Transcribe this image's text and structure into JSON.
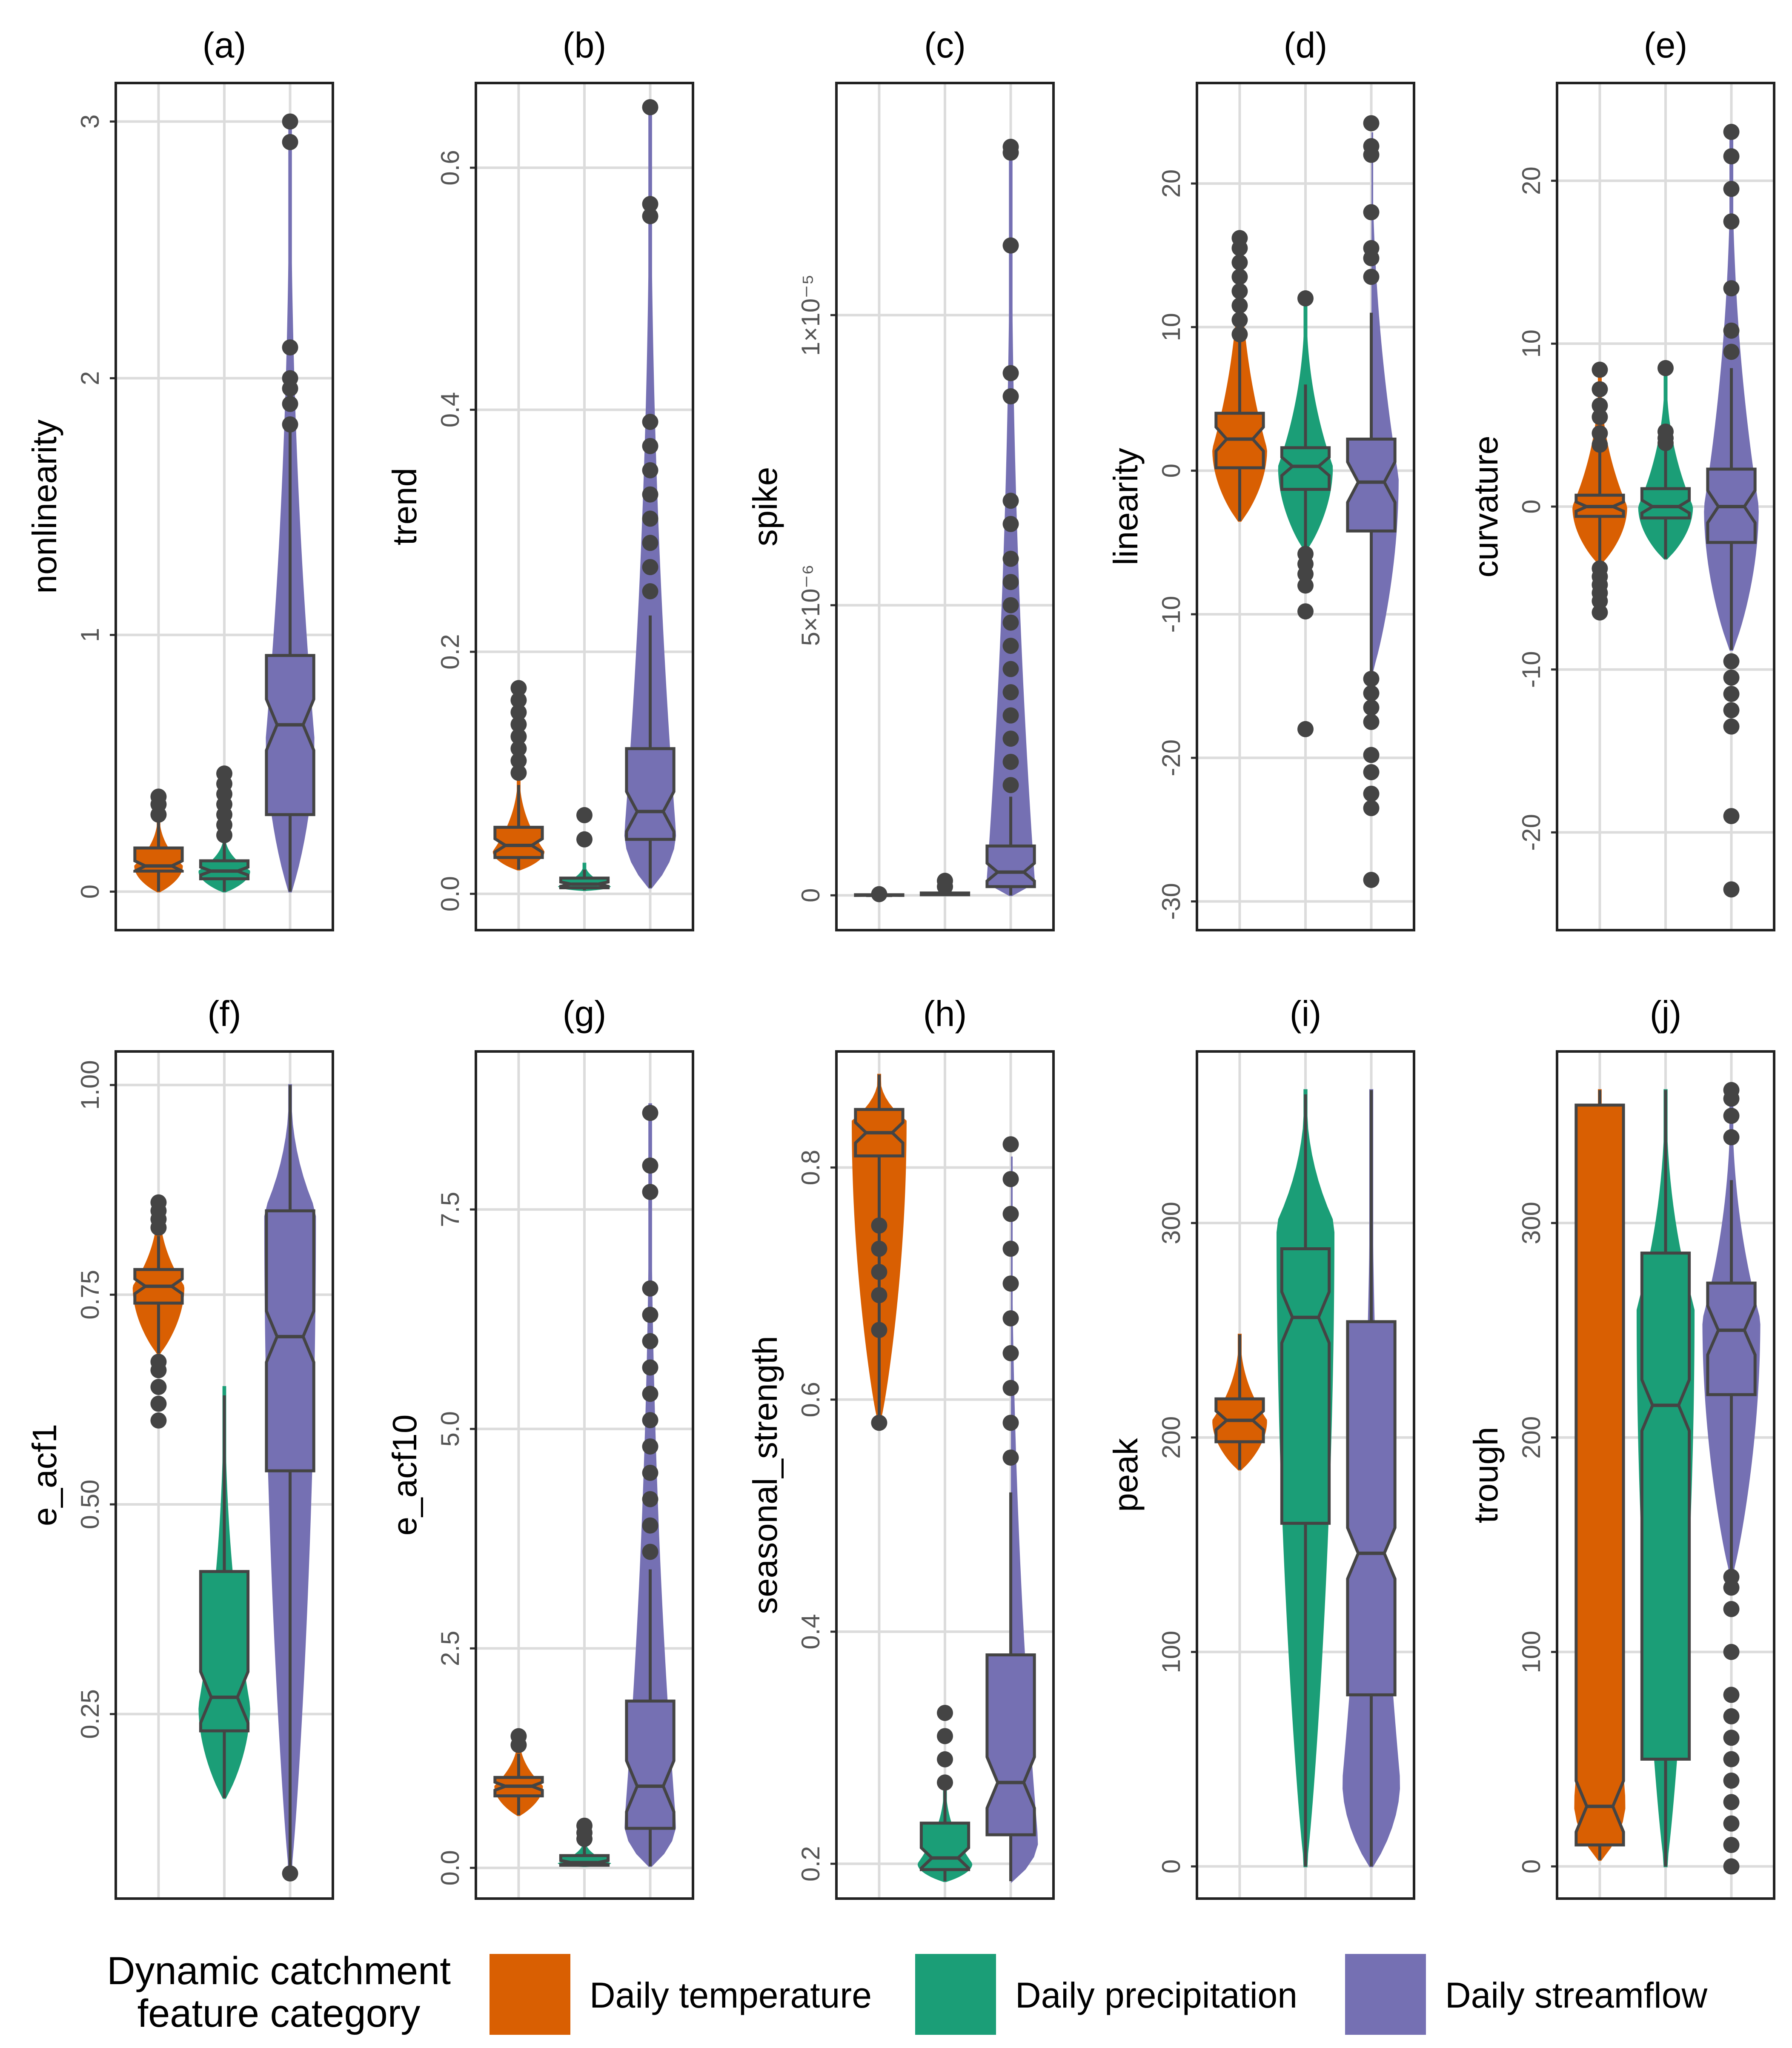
{
  "chart_data": {
    "type": "violin",
    "legend": {
      "title_line1": "Dynamic catchment",
      "title_line2": "feature category",
      "placement": "bottom",
      "entries": [
        {
          "label": "Daily temperature",
          "color": "#d95f02"
        },
        {
          "label": "Daily precipitation",
          "color": "#1b9e77"
        },
        {
          "label": "Daily streamflow",
          "color": "#7570b3"
        }
      ]
    },
    "categories": [
      "Daily temperature",
      "Daily precipitation",
      "Daily streamflow"
    ],
    "panels": [
      {
        "id": "a",
        "title": "(a)",
        "ylabel": "nonlinearity",
        "ylim": [
          -0.15,
          3.15
        ],
        "ticks": [
          {
            "v": 0,
            "t": "0"
          },
          {
            "v": 1,
            "t": "1"
          },
          {
            "v": 2,
            "t": "2"
          },
          {
            "v": 3,
            "t": "3"
          }
        ],
        "series": [
          {
            "min": 0.0,
            "q1": 0.08,
            "median": 0.1,
            "q3": 0.17,
            "max": 0.28,
            "violin_width": 0.75,
            "peak": 0.1,
            "top": 0.3,
            "outliers": [
              0.3,
              0.34,
              0.37
            ]
          },
          {
            "min": 0.0,
            "q1": 0.05,
            "median": 0.08,
            "q3": 0.12,
            "max": 0.2,
            "violin_width": 0.8,
            "peak": 0.08,
            "top": 0.22,
            "outliers": [
              0.22,
              0.26,
              0.3,
              0.34,
              0.38,
              0.42,
              0.46
            ]
          },
          {
            "min": 0.0,
            "q1": 0.3,
            "median": 0.65,
            "q3": 0.92,
            "max": 1.85,
            "violin_width": 0.75,
            "peak": 0.6,
            "top": 3.0,
            "outliers": [
              1.82,
              1.9,
              1.96,
              2.0,
              2.12,
              2.92,
              3.0
            ]
          }
        ]
      },
      {
        "id": "b",
        "title": "(b)",
        "ylabel": "trend",
        "ylim": [
          -0.03,
          0.67
        ],
        "ticks": [
          {
            "v": 0.0,
            "t": "0.0"
          },
          {
            "v": 0.2,
            "t": "0.2"
          },
          {
            "v": 0.4,
            "t": "0.4"
          },
          {
            "v": 0.6,
            "t": "0.6"
          }
        ],
        "series": [
          {
            "min": 0.02,
            "q1": 0.03,
            "median": 0.04,
            "q3": 0.055,
            "max": 0.09,
            "violin_width": 0.8,
            "peak": 0.035,
            "top": 0.1,
            "outliers": [
              0.1,
              0.11,
              0.12,
              0.13,
              0.14,
              0.15,
              0.16,
              0.17
            ]
          },
          {
            "min": 0.003,
            "q1": 0.005,
            "median": 0.008,
            "q3": 0.013,
            "max": 0.02,
            "violin_width": 0.8,
            "peak": 0.006,
            "top": 0.025,
            "outliers": [
              0.045,
              0.065
            ]
          },
          {
            "min": 0.005,
            "q1": 0.045,
            "median": 0.068,
            "q3": 0.12,
            "max": 0.23,
            "violin_width": 0.8,
            "peak": 0.05,
            "top": 0.65,
            "outliers": [
              0.25,
              0.27,
              0.29,
              0.31,
              0.33,
              0.35,
              0.37,
              0.39,
              0.56,
              0.57,
              0.65
            ]
          }
        ]
      },
      {
        "id": "c",
        "title": "(c)",
        "ylabel": "spike",
        "ylim": [
          -0.06,
          1.4
        ],
        "ticks": [
          {
            "v": 0,
            "t": "0"
          },
          {
            "v": 0.5,
            "t": "5×10⁻⁶"
          },
          {
            "v": 1.0,
            "t": "1×10⁻⁵"
          }
        ],
        "series": [
          {
            "min": 0.0,
            "q1": 0.0,
            "median": 0.0,
            "q3": 0.001,
            "max": 0.002,
            "violin_width": 0.65,
            "peak": 0.0,
            "top": 0.003,
            "outliers": [
              0.002
            ]
          },
          {
            "min": 0.0,
            "q1": 0.001,
            "median": 0.002,
            "q3": 0.004,
            "max": 0.008,
            "violin_width": 0.65,
            "peak": 0.002,
            "top": 0.01,
            "outliers": [
              0.015,
              0.025
            ]
          },
          {
            "min": 0.0,
            "q1": 0.015,
            "median": 0.04,
            "q3": 0.085,
            "max": 0.17,
            "violin_width": 0.75,
            "peak": 0.02,
            "top": 1.29,
            "outliers": [
              0.19,
              0.23,
              0.27,
              0.31,
              0.35,
              0.39,
              0.43,
              0.47,
              0.5,
              0.54,
              0.58,
              0.64,
              0.68,
              0.86,
              0.9,
              1.12,
              1.28,
              1.29
            ]
          }
        ]
      },
      {
        "id": "d",
        "title": "(d)",
        "ylabel": "linearity",
        "ylim": [
          -32,
          27
        ],
        "ticks": [
          {
            "v": -30,
            "t": "-30"
          },
          {
            "v": -20,
            "t": "-20"
          },
          {
            "v": -10,
            "t": "-10"
          },
          {
            "v": 0,
            "t": "0"
          },
          {
            "v": 10,
            "t": "10"
          },
          {
            "v": 20,
            "t": "20"
          }
        ],
        "series": [
          {
            "min": -3.5,
            "q1": 0.2,
            "median": 2.2,
            "q3": 4.0,
            "max": 9.0,
            "violin_width": 0.85,
            "peak": 1.5,
            "top": 16,
            "outliers": [
              9.5,
              10.5,
              11.5,
              12.5,
              13.5,
              14.5,
              15.5,
              16.2
            ]
          },
          {
            "min": -5.5,
            "q1": -1.3,
            "median": 0.3,
            "q3": 1.6,
            "max": 6.0,
            "violin_width": 0.85,
            "peak": 0.3,
            "top": 12,
            "outliers": [
              -5.8,
              -6.5,
              -7.2,
              -8,
              -9.8,
              -18,
              12
            ]
          },
          {
            "min": -14,
            "q1": -4.2,
            "median": -0.8,
            "q3": 2.2,
            "max": 11,
            "violin_width": 0.85,
            "peak": -0.5,
            "top": 24.2,
            "outliers": [
              -14.5,
              -15.5,
              -16.5,
              -17.5,
              -19.8,
              -21,
              -22.5,
              -23.5,
              -28.5,
              13.5,
              14.8,
              15.5,
              18,
              22,
              22.6,
              24.2
            ]
          }
        ]
      },
      {
        "id": "e",
        "title": "(e)",
        "ylabel": "curvature",
        "ylim": [
          -26,
          26
        ],
        "ticks": [
          {
            "v": -20,
            "t": "-20"
          },
          {
            "v": -10,
            "t": "-10"
          },
          {
            "v": 0,
            "t": "0"
          },
          {
            "v": 10,
            "t": "10"
          },
          {
            "v": 20,
            "t": "20"
          }
        ],
        "series": [
          {
            "min": -3.5,
            "q1": -0.6,
            "median": 0.0,
            "q3": 0.7,
            "max": 3.5,
            "violin_width": 0.85,
            "peak": 0.0,
            "top": 8.5,
            "outliers": [
              -3.8,
              -4.3,
              -4.8,
              -5.3,
              -5.8,
              -6.5,
              3.8,
              4.5,
              5.5,
              6.2,
              7.2,
              8.4
            ]
          },
          {
            "min": -3.2,
            "q1": -0.7,
            "median": 0.0,
            "q3": 1.1,
            "max": 3.8,
            "violin_width": 0.85,
            "peak": 0.0,
            "top": 8.5,
            "outliers": [
              3.9,
              4.2,
              4.6,
              8.5
            ]
          },
          {
            "min": -8.8,
            "q1": -2.2,
            "median": 0.0,
            "q3": 2.3,
            "max": 8.5,
            "violin_width": 0.85,
            "peak": 0.0,
            "top": 23,
            "outliers": [
              -9.5,
              -10.5,
              -11.5,
              -12.5,
              -13.5,
              -19,
              -23.5,
              9.5,
              10.8,
              13.4,
              17.5,
              19.5,
              21.5,
              23
            ]
          }
        ]
      },
      {
        "id": "f",
        "title": "(f)",
        "ylabel": "e_acf1",
        "ylim": [
          0.03,
          1.04
        ],
        "ticks": [
          {
            "v": 0.25,
            "t": "0.25"
          },
          {
            "v": 0.5,
            "t": "0.50"
          },
          {
            "v": 0.75,
            "t": "0.75"
          },
          {
            "v": 1.0,
            "t": "1.00"
          }
        ],
        "series": [
          {
            "min": 0.68,
            "q1": 0.74,
            "median": 0.76,
            "q3": 0.78,
            "max": 0.82,
            "violin_width": 0.8,
            "peak": 0.76,
            "top": 0.86,
            "outliers": [
              0.6,
              0.62,
              0.64,
              0.66,
              0.67,
              0.83,
              0.84,
              0.85,
              0.86
            ]
          },
          {
            "min": 0.15,
            "q1": 0.23,
            "median": 0.27,
            "q3": 0.42,
            "max": 0.63,
            "violin_width": 0.8,
            "peak": 0.26,
            "top": 0.64,
            "outliers": []
          },
          {
            "min": 0.06,
            "q1": 0.54,
            "median": 0.7,
            "q3": 0.85,
            "max": 1.0,
            "violin_width": 0.8,
            "peak": 0.85,
            "top": 1.0,
            "outliers": [
              0.06
            ]
          }
        ]
      },
      {
        "id": "g",
        "title": "(g)",
        "ylabel": "e_acf10",
        "ylim": [
          -0.35,
          9.3
        ],
        "ticks": [
          {
            "v": 0.0,
            "t": "0.0"
          },
          {
            "v": 2.5,
            "t": "2.5"
          },
          {
            "v": 5.0,
            "t": "5.0"
          },
          {
            "v": 7.5,
            "t": "7.5"
          }
        ],
        "series": [
          {
            "min": 0.6,
            "q1": 0.82,
            "median": 0.93,
            "q3": 1.03,
            "max": 1.3,
            "violin_width": 0.75,
            "peak": 0.93,
            "top": 1.5,
            "outliers": [
              1.4,
              1.5
            ]
          },
          {
            "min": 0.02,
            "q1": 0.03,
            "median": 0.06,
            "q3": 0.14,
            "max": 0.3,
            "violin_width": 0.8,
            "peak": 0.05,
            "top": 0.32,
            "outliers": [
              0.33,
              0.4,
              0.48
            ]
          },
          {
            "min": 0.02,
            "q1": 0.45,
            "median": 0.93,
            "q3": 1.9,
            "max": 3.4,
            "violin_width": 0.8,
            "peak": 0.5,
            "top": 8.7,
            "outliers": [
              3.6,
              3.9,
              4.2,
              4.5,
              4.8,
              5.1,
              5.4,
              5.7,
              6.0,
              6.3,
              6.6,
              7.7,
              8.0,
              8.6
            ]
          }
        ]
      },
      {
        "id": "h",
        "title": "(h)",
        "ylabel": "seasonal_strength",
        "ylim": [
          0.17,
          0.9
        ],
        "ticks": [
          {
            "v": 0.2,
            "t": "0.2"
          },
          {
            "v": 0.4,
            "t": "0.4"
          },
          {
            "v": 0.6,
            "t": "0.6"
          },
          {
            "v": 0.8,
            "t": "0.8"
          }
        ],
        "series": [
          {
            "min": 0.58,
            "q1": 0.81,
            "median": 0.83,
            "q3": 0.85,
            "max": 0.88,
            "violin_width": 0.85,
            "peak": 0.84,
            "top": 0.88,
            "outliers": [
              0.66,
              0.69,
              0.71,
              0.73,
              0.75,
              0.58
            ]
          },
          {
            "min": 0.185,
            "q1": 0.195,
            "median": 0.205,
            "q3": 0.235,
            "max": 0.27,
            "violin_width": 0.85,
            "peak": 0.2,
            "top": 0.27,
            "outliers": [
              0.27,
              0.29,
              0.31,
              0.33
            ]
          },
          {
            "min": 0.185,
            "q1": 0.225,
            "median": 0.27,
            "q3": 0.38,
            "max": 0.52,
            "violin_width": 0.85,
            "peak": 0.22,
            "top": 0.82,
            "outliers": [
              0.55,
              0.58,
              0.61,
              0.64,
              0.67,
              0.7,
              0.73,
              0.76,
              0.79,
              0.82
            ]
          }
        ]
      },
      {
        "id": "i",
        "title": "(i)",
        "ylabel": "peak",
        "ylim": [
          -15,
          380
        ],
        "ticks": [
          {
            "v": 0,
            "t": "0"
          },
          {
            "v": 100,
            "t": "100"
          },
          {
            "v": 200,
            "t": "200"
          },
          {
            "v": 300,
            "t": "300"
          }
        ],
        "series": [
          {
            "min": 185,
            "q1": 198,
            "median": 208,
            "q3": 218,
            "max": 248,
            "violin_width": 0.85,
            "peak": 208,
            "top": 248,
            "outliers": []
          },
          {
            "min": 0,
            "q1": 160,
            "median": 256,
            "q3": 288,
            "max": 360,
            "violin_width": 0.9,
            "peak": 300,
            "top": 362,
            "outliers": []
          },
          {
            "min": 0,
            "q1": 80,
            "median": 146,
            "q3": 254,
            "max": 362,
            "violin_width": 0.9,
            "peak": 40,
            "top": 362,
            "outliers": []
          }
        ]
      },
      {
        "id": "j",
        "title": "(j)",
        "ylabel": "trough",
        "ylim": [
          -15,
          380
        ],
        "ticks": [
          {
            "v": 0,
            "t": "0"
          },
          {
            "v": 100,
            "t": "100"
          },
          {
            "v": 200,
            "t": "200"
          },
          {
            "v": 300,
            "t": "300"
          }
        ],
        "series": [
          {
            "min": 3,
            "q1": 10,
            "median": 28,
            "q3": 355,
            "max": 362,
            "violin_width": 0.8,
            "peak": 30,
            "top": 362,
            "outliers": []
          },
          {
            "min": 0,
            "q1": 50,
            "median": 215,
            "q3": 286,
            "max": 362,
            "violin_width": 0.9,
            "peak": 260,
            "top": 362,
            "outliers": []
          },
          {
            "min": 136,
            "q1": 220,
            "median": 250,
            "q3": 272,
            "max": 320,
            "violin_width": 0.9,
            "peak": 255,
            "top": 362,
            "outliers": [
              0,
              10,
              20,
              30,
              40,
              50,
              60,
              70,
              80,
              100,
              120,
              130,
              135,
              340,
              350,
              358,
              362
            ]
          }
        ]
      }
    ]
  }
}
